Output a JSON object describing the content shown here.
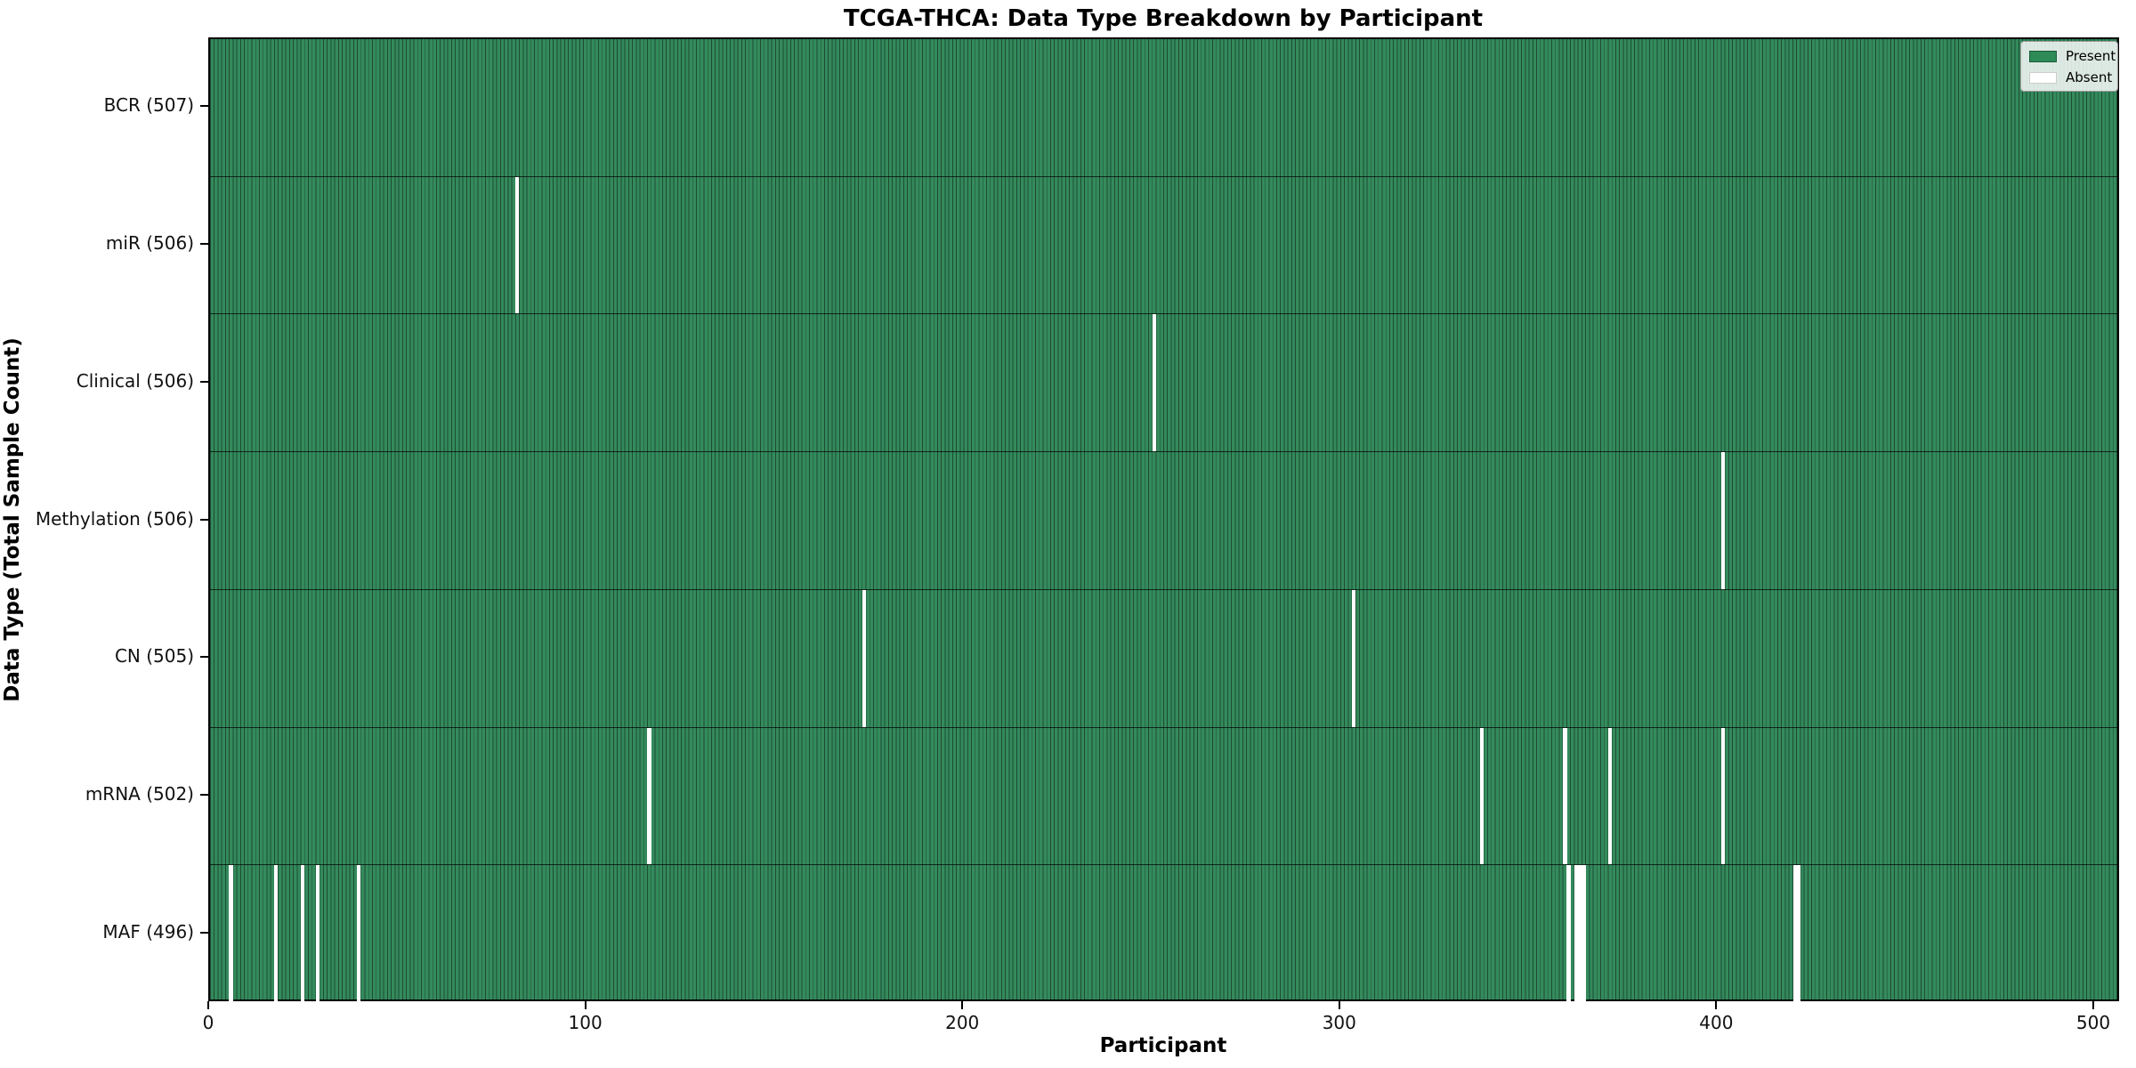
{
  "chart_data": {
    "type": "heatmap",
    "title": "TCGA-THCA: Data Type Breakdown by Participant",
    "xlabel": "Participant",
    "ylabel": "Data Type (Total Sample Count)",
    "x_ticks": [
      0,
      100,
      200,
      300,
      400,
      500
    ],
    "x_range": [
      0,
      507
    ],
    "n_participants": 507,
    "grid": false,
    "legend_position": "upper right",
    "legend": [
      {
        "label": "Present",
        "color": "#2e8b57",
        "swatch": "present"
      },
      {
        "label": "Absent",
        "color": "#ffffff",
        "swatch": "absent"
      }
    ],
    "colors": {
      "present_fill": "#2e8b57",
      "absent_fill": "#ffffff",
      "cell_edge": "rgba(0,0,0,0.45)",
      "background": "#ffffff"
    },
    "rows": [
      {
        "label": "BCR (507)",
        "data_type": "BCR",
        "total_samples": 507,
        "absent_participants": []
      },
      {
        "label": "miR (506)",
        "data_type": "miR",
        "total_samples": 506,
        "absent_participants": [
          81
        ]
      },
      {
        "label": "Clinical (506)",
        "data_type": "Clinical",
        "total_samples": 506,
        "absent_participants": [
          250
        ]
      },
      {
        "label": "Methylation (506)",
        "data_type": "Methylation",
        "total_samples": 506,
        "absent_participants": [
          401
        ]
      },
      {
        "label": "CN (505)",
        "data_type": "CN",
        "total_samples": 505,
        "absent_participants": [
          173,
          303
        ]
      },
      {
        "label": "mRNA (502)",
        "data_type": "mRNA",
        "total_samples": 502,
        "absent_participants": [
          116,
          337,
          359,
          371,
          401
        ]
      },
      {
        "label": "MAF (496)",
        "data_type": "MAF",
        "total_samples": 496,
        "absent_participants": [
          5,
          17,
          24,
          28,
          39,
          360,
          362,
          363,
          364,
          420,
          421
        ]
      }
    ]
  }
}
